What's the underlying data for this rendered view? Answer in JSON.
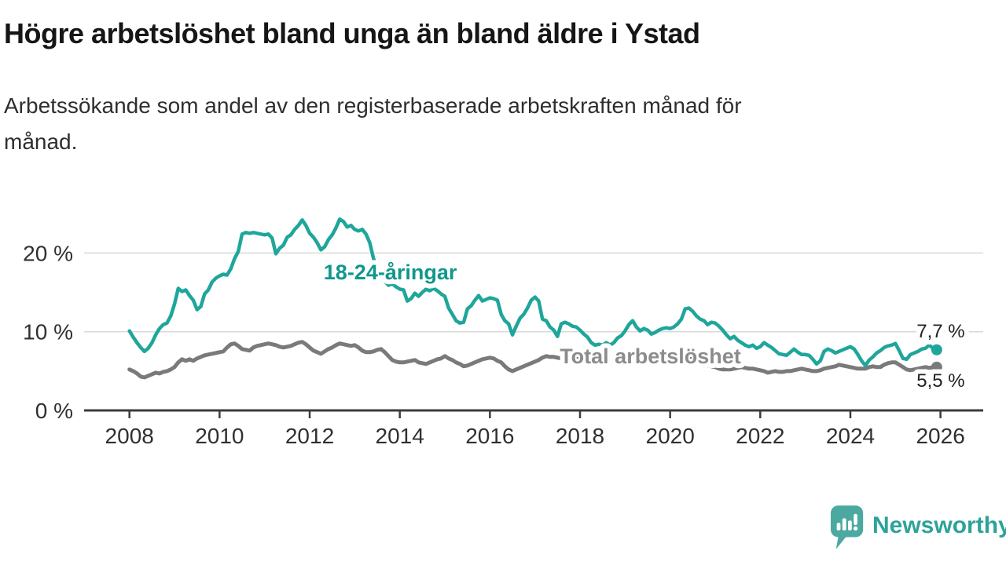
{
  "header": {
    "title": "Högre arbetslöshet bland unga än bland äldre i Ystad",
    "subtitle": "Arbetssökande som andel av den registerbaserade arbetskraften månad för\nmånad."
  },
  "branding": {
    "logo_text": "Newsworthy",
    "logo_icon": "speech-bubble-bar-chart-icon",
    "logo_color": "#4ba9a1",
    "logo_text_color": "#2ca39a"
  },
  "chart_data": {
    "type": "line",
    "title": "Högre arbetslöshet bland unga än bland äldre i Ystad",
    "subtitle": "Arbetssökande som andel av den registerbaserade arbetskraften månad för månad.",
    "unit": "%",
    "grid": true,
    "legend_position": "inline-labels",
    "x_axis": {
      "range": [
        2007.9,
        2026.6
      ],
      "ticks": [
        {
          "value": 2008,
          "label": "2008"
        },
        {
          "value": 2010,
          "label": "2010"
        },
        {
          "value": 2012,
          "label": "2012"
        },
        {
          "value": 2014,
          "label": "2014"
        },
        {
          "value": 2016,
          "label": "2016"
        },
        {
          "value": 2018,
          "label": "2018"
        },
        {
          "value": 2020,
          "label": "2020"
        },
        {
          "value": 2022,
          "label": "2022"
        },
        {
          "value": 2024,
          "label": "2024"
        },
        {
          "value": 2026,
          "label": "2026"
        }
      ]
    },
    "y_axis": {
      "range": [
        0,
        25.5
      ],
      "ticks": [
        {
          "value": 0,
          "label": "0 %"
        },
        {
          "value": 10,
          "label": "10 %"
        },
        {
          "value": 20,
          "label": "20 %"
        }
      ]
    },
    "series": [
      {
        "name": "Total arbetslöshet",
        "color": "#7a7a7a",
        "label_color": "#8c8c8c",
        "last_value": 5.5,
        "end_value_label": "5,5 %",
        "x_start": 2008,
        "x_step": "monthly",
        "values": [
          5.2,
          5.0,
          4.7,
          4.3,
          4.2,
          4.4,
          4.6,
          4.8,
          4.7,
          4.9,
          5.0,
          5.2,
          5.5,
          6.1,
          6.5,
          6.3,
          6.5,
          6.3,
          6.6,
          6.8,
          7.0,
          7.1,
          7.2,
          7.3,
          7.4,
          7.5,
          8.0,
          8.4,
          8.5,
          8.2,
          7.8,
          7.7,
          7.6,
          8.0,
          8.2,
          8.3,
          8.4,
          8.5,
          8.4,
          8.3,
          8.1,
          8.0,
          8.1,
          8.2,
          8.4,
          8.6,
          8.7,
          8.4,
          8.0,
          7.6,
          7.4,
          7.2,
          7.5,
          7.8,
          8.0,
          8.3,
          8.5,
          8.4,
          8.3,
          8.2,
          8.3,
          8.0,
          7.6,
          7.4,
          7.4,
          7.5,
          7.7,
          7.8,
          7.4,
          6.9,
          6.4,
          6.2,
          6.1,
          6.1,
          6.2,
          6.3,
          6.4,
          6.1,
          6.0,
          5.9,
          6.1,
          6.3,
          6.5,
          6.6,
          6.9,
          6.6,
          6.4,
          6.1,
          5.9,
          5.6,
          5.7,
          5.9,
          6.1,
          6.3,
          6.5,
          6.6,
          6.7,
          6.6,
          6.3,
          6.1,
          5.6,
          5.2,
          5.0,
          5.2,
          5.4,
          5.6,
          5.8,
          6.0,
          6.2,
          6.4,
          6.7,
          6.9,
          6.8,
          6.8,
          6.7,
          6.6,
          6.5,
          6.5,
          6.6,
          6.6,
          6.4,
          6.3,
          6.2,
          6.1,
          6.0,
          6.1,
          6.1,
          6.0,
          6.0,
          6.0,
          6.1,
          6.1,
          6.1,
          6.1,
          6.0,
          5.9,
          5.9,
          5.8,
          5.8,
          5.8,
          5.8,
          5.8,
          5.9,
          5.9,
          5.9,
          6.0,
          6.2,
          6.4,
          6.5,
          6.6,
          6.5,
          6.3,
          6.0,
          5.8,
          5.7,
          5.6,
          5.5,
          5.3,
          5.2,
          5.2,
          5.2,
          5.3,
          5.4,
          5.5,
          5.4,
          5.3,
          5.3,
          5.2,
          5.1,
          5.0,
          4.8,
          4.9,
          5.0,
          4.9,
          4.9,
          5.0,
          5.0,
          5.1,
          5.2,
          5.3,
          5.2,
          5.1,
          5.0,
          5.0,
          5.1,
          5.3,
          5.4,
          5.5,
          5.6,
          5.8,
          5.7,
          5.6,
          5.5,
          5.4,
          5.3,
          5.3,
          5.3,
          5.5,
          5.6,
          5.5,
          5.5,
          5.8,
          6.0,
          6.1,
          6.1,
          5.8,
          5.5,
          5.2,
          5.1,
          5.2,
          5.3,
          5.4,
          5.5,
          5.4,
          5.5,
          5.5
        ]
      },
      {
        "name": "18-24-åringar",
        "color": "#1fa69b",
        "label_color": "#10978c",
        "last_value": 7.7,
        "end_value_label": "7,7 %",
        "x_start": 2008,
        "x_step": "monthly",
        "values": [
          10.1,
          9.3,
          8.6,
          8.0,
          7.5,
          7.9,
          8.6,
          9.6,
          10.4,
          10.9,
          11.1,
          12.0,
          13.5,
          15.5,
          15.1,
          15.3,
          14.6,
          14.0,
          12.8,
          13.2,
          14.8,
          15.3,
          16.3,
          16.8,
          17.1,
          17.3,
          17.2,
          18.0,
          19.3,
          20.2,
          22.4,
          22.6,
          22.5,
          22.6,
          22.5,
          22.4,
          22.3,
          22.4,
          21.9,
          19.9,
          20.6,
          21.0,
          22.0,
          22.3,
          23.0,
          23.5,
          24.2,
          23.5,
          22.5,
          22.0,
          21.3,
          20.4,
          20.8,
          21.7,
          22.3,
          23.2,
          24.3,
          24.0,
          23.3,
          23.5,
          23.0,
          22.8,
          23.0,
          22.4,
          21.3,
          19.3,
          18.0,
          17.2,
          16.4,
          15.9,
          16.1,
          15.7,
          15.4,
          15.3,
          13.9,
          14.2,
          14.9,
          14.5,
          15.0,
          15.4,
          15.2,
          15.5,
          15.2,
          14.8,
          14.5,
          13.0,
          12.2,
          11.4,
          11.1,
          11.2,
          12.9,
          13.3,
          14.0,
          14.6,
          13.9,
          14.1,
          14.3,
          14.2,
          14.0,
          12.2,
          11.4,
          11.0,
          9.6,
          10.7,
          11.7,
          12.2,
          13.0,
          14.0,
          14.4,
          13.9,
          11.6,
          11.4,
          10.6,
          10.2,
          9.4,
          11.0,
          11.2,
          11.0,
          10.7,
          10.6,
          10.2,
          9.7,
          9.3,
          8.6,
          8.3,
          8.4,
          8.3,
          8.6,
          8.3,
          8.6,
          9.2,
          9.5,
          10.1,
          10.9,
          11.4,
          10.6,
          10.1,
          10.4,
          10.2,
          9.7,
          9.9,
          10.2,
          10.4,
          10.5,
          10.4,
          10.6,
          11.0,
          11.6,
          12.9,
          13.0,
          12.6,
          12.0,
          11.6,
          11.4,
          10.9,
          11.2,
          11.1,
          10.7,
          10.2,
          9.6,
          9.1,
          9.4,
          8.9,
          8.6,
          8.3,
          8.1,
          8.3,
          7.9,
          8.1,
          8.6,
          8.3,
          8.0,
          7.6,
          7.2,
          7.1,
          7.0,
          7.4,
          7.8,
          7.4,
          7.1,
          7.1,
          7.0,
          6.5,
          5.9,
          6.3,
          7.5,
          7.8,
          7.6,
          7.3,
          7.5,
          7.7,
          7.9,
          8.1,
          7.8,
          7.1,
          6.3,
          5.7,
          6.4,
          6.8,
          7.3,
          7.6,
          8.0,
          8.2,
          8.3,
          8.5,
          7.6,
          6.6,
          6.5,
          7.1,
          7.3,
          7.5,
          7.8,
          7.9,
          8.3,
          7.9,
          7.7
        ]
      }
    ],
    "annotations": [
      {
        "kind": "series-label-18-24",
        "text": "18-24-åringar",
        "x": 2012.31,
        "y": 16.65,
        "color": "#10978c",
        "bold": true
      },
      {
        "kind": "series-label-total",
        "text": "Total arbetslöshet",
        "x": 2017.55,
        "y": 5.98,
        "color": "#8c8c8c",
        "bold": true
      },
      {
        "kind": "end-value-18-24",
        "text": "7,7 %",
        "x": 2025.47,
        "y": 9.27,
        "color": "#222222",
        "bold": false
      },
      {
        "kind": "end-value-total",
        "text": "5,5 %",
        "x": 2025.47,
        "y": 2.99,
        "color": "#222222",
        "bold": false
      }
    ]
  }
}
